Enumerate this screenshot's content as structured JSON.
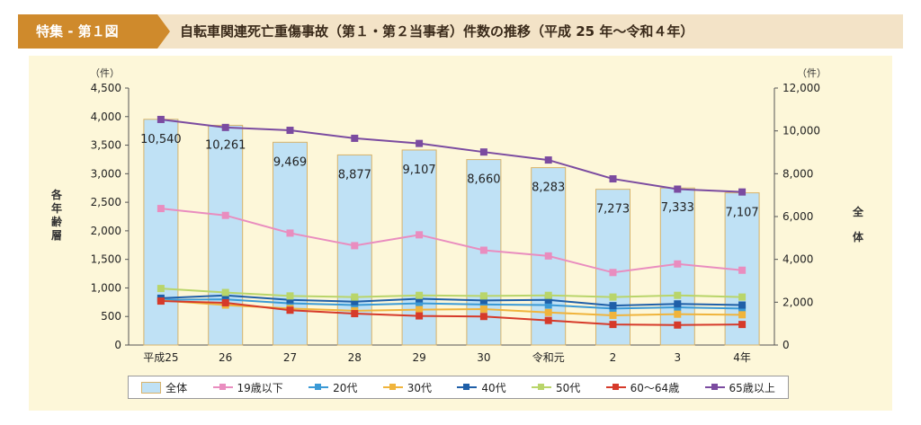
{
  "header": {
    "tag": "特集 - 第１図",
    "title": "自転車関連死亡重傷事故（第１・第２当事者）件数の推移（平成 25 年～令和４年）"
  },
  "axes": {
    "left_unit": "（件）",
    "right_unit": "（件）",
    "left_label": "各年齢層",
    "right_label": "全体"
  },
  "chart_data": {
    "type": "bar",
    "categories": [
      "平成25",
      "26",
      "27",
      "28",
      "29",
      "30",
      "令和元",
      "2",
      "3",
      "4年"
    ],
    "bar_series": {
      "name": "全体",
      "axis": "right",
      "values": [
        10540,
        10261,
        9469,
        8877,
        9107,
        8660,
        8283,
        7273,
        7333,
        7107
      ],
      "labels": [
        "10,540",
        "10,261",
        "9,469",
        "8,877",
        "9,107",
        "8,660",
        "8,283",
        "7,273",
        "7,333",
        "7,107"
      ]
    },
    "line_series": [
      {
        "name": "19歳以下",
        "color": "#e98dbf",
        "values": [
          2390,
          2270,
          1960,
          1740,
          1930,
          1660,
          1560,
          1270,
          1420,
          1310
        ]
      },
      {
        "name": "20代",
        "color": "#3b9ad6",
        "values": [
          790,
          800,
          730,
          700,
          730,
          710,
          700,
          640,
          660,
          640
        ]
      },
      {
        "name": "30代",
        "color": "#f0b43c",
        "values": [
          780,
          700,
          640,
          600,
          620,
          630,
          570,
          520,
          540,
          530
        ]
      },
      {
        "name": "40代",
        "color": "#1f5fa8",
        "values": [
          820,
          870,
          790,
          760,
          810,
          780,
          790,
          690,
          720,
          700
        ]
      },
      {
        "name": "50代",
        "color": "#b9d56a",
        "values": [
          990,
          920,
          860,
          840,
          870,
          860,
          870,
          840,
          870,
          840
        ]
      },
      {
        "name": "60～64歳",
        "color": "#d63a2a",
        "values": [
          770,
          740,
          610,
          550,
          510,
          500,
          430,
          360,
          350,
          360
        ]
      },
      {
        "name": "65歳以上",
        "color": "#7b4ba0",
        "values": [
          3950,
          3810,
          3760,
          3620,
          3530,
          3380,
          3240,
          2910,
          2730,
          2680
        ]
      }
    ],
    "left_axis": {
      "min": 0,
      "max": 4500,
      "ticks": [
        "0",
        "500",
        "1,000",
        "1,500",
        "2,000",
        "2,500",
        "3,000",
        "3,500",
        "4,000",
        "4,500"
      ]
    },
    "right_axis": {
      "min": 0,
      "max": 12000,
      "ticks": [
        "0",
        "2,000",
        "4,000",
        "6,000",
        "8,000",
        "10,000",
        "12,000"
      ]
    },
    "grid": false,
    "legend_position": "bottom"
  }
}
